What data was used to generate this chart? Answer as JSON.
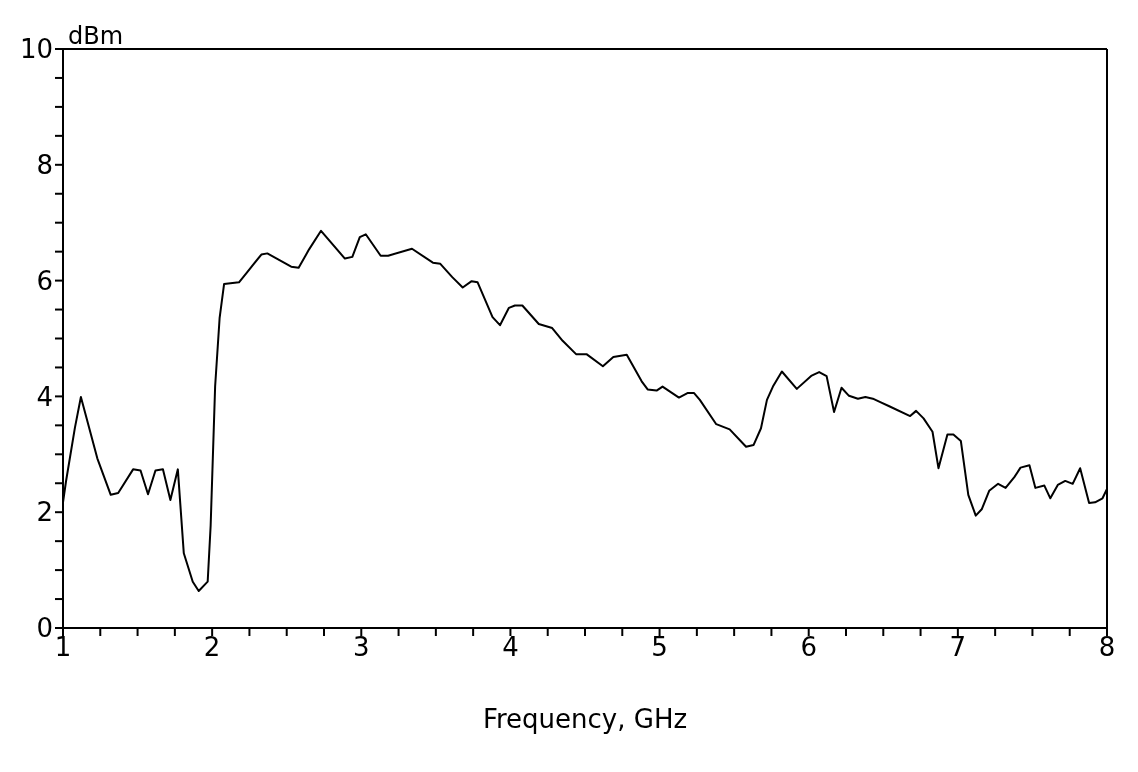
{
  "chart_data": {
    "type": "line",
    "xlabel": "Frequency, GHz",
    "ylabel": "dBm",
    "xlim": [
      1,
      8
    ],
    "ylim": [
      0,
      10
    ],
    "xticks": [
      1,
      {
        "value": 1.25,
        "label": null
      },
      {
        "value": 1.5,
        "label": null
      },
      {
        "value": 1.75,
        "label": null
      },
      2,
      {
        "value": 2.25,
        "label": null
      },
      {
        "value": 2.5,
        "label": null
      },
      {
        "value": 2.75,
        "label": null
      },
      3,
      {
        "value": 3.25,
        "label": null
      },
      {
        "value": 3.5,
        "label": null
      },
      {
        "value": 3.75,
        "label": null
      },
      4,
      {
        "value": 4.25,
        "label": null
      },
      {
        "value": 4.5,
        "label": null
      },
      {
        "value": 4.75,
        "label": null
      },
      5,
      {
        "value": 5.25,
        "label": null
      },
      {
        "value": 5.5,
        "label": null
      },
      {
        "value": 5.75,
        "label": null
      },
      6,
      {
        "value": 6.25,
        "label": null
      },
      {
        "value": 6.5,
        "label": null
      },
      {
        "value": 6.75,
        "label": null
      },
      7,
      {
        "value": 7.25,
        "label": null
      },
      {
        "value": 7.5,
        "label": null
      },
      {
        "value": 7.75,
        "label": null
      },
      8
    ],
    "yticks": [
      0,
      {
        "value": 0.5,
        "label": null
      },
      {
        "value": 1,
        "label": null
      },
      {
        "value": 1.5,
        "label": null
      },
      2,
      {
        "value": 2.5,
        "label": null
      },
      {
        "value": 3,
        "label": null
      },
      {
        "value": 3.5,
        "label": null
      },
      4,
      {
        "value": 4.5,
        "label": null
      },
      {
        "value": 5,
        "label": null
      },
      {
        "value": 5.5,
        "label": null
      },
      6,
      {
        "value": 6.5,
        "label": null
      },
      {
        "value": 7,
        "label": null
      },
      {
        "value": 7.5,
        "label": null
      },
      8,
      {
        "value": 8.5,
        "label": null
      },
      {
        "value": 9,
        "label": null
      },
      {
        "value": 9.5,
        "label": null
      },
      10
    ],
    "grid": false,
    "marker": "none",
    "line_style": "solid",
    "series": [
      {
        "color": "#000000",
        "x": [
          1.0,
          1.02,
          1.08,
          1.12,
          1.23,
          1.32,
          1.37,
          1.47,
          1.52,
          1.57,
          1.62,
          1.67,
          1.72,
          1.77,
          1.81,
          1.87,
          1.91,
          1.97,
          1.99,
          2.02,
          2.05,
          2.08,
          2.18,
          2.23,
          2.33,
          2.37,
          2.53,
          2.58,
          2.65,
          2.73,
          2.89,
          2.94,
          2.99,
          3.03,
          3.13,
          3.18,
          3.34,
          3.48,
          3.53,
          3.61,
          3.68,
          3.74,
          3.78,
          3.88,
          3.93,
          3.99,
          4.03,
          4.08,
          4.19,
          4.28,
          4.35,
          4.44,
          4.51,
          4.62,
          4.69,
          4.78,
          4.88,
          4.92,
          4.98,
          5.02,
          5.13,
          5.19,
          5.23,
          5.27,
          5.38,
          5.47,
          5.58,
          5.63,
          5.68,
          5.72,
          5.76,
          5.82,
          5.92,
          6.02,
          6.07,
          6.12,
          6.17,
          6.22,
          6.27,
          6.33,
          6.38,
          6.43,
          6.48,
          6.54,
          6.68,
          6.72,
          6.77,
          6.83,
          6.87,
          6.93,
          6.97,
          7.02,
          7.07,
          7.12,
          7.16,
          7.21,
          7.27,
          7.32,
          7.38,
          7.42,
          7.48,
          7.52,
          7.58,
          7.62,
          7.67,
          7.72,
          7.77,
          7.82,
          7.88,
          7.92,
          7.97,
          8.0
        ],
        "values": [
          2.17,
          2.53,
          3.46,
          3.99,
          2.93,
          2.3,
          2.33,
          2.74,
          2.72,
          2.31,
          2.72,
          2.74,
          2.21,
          2.74,
          1.29,
          0.8,
          0.64,
          0.8,
          1.77,
          4.17,
          5.35,
          5.94,
          5.97,
          6.13,
          6.45,
          6.47,
          6.24,
          6.22,
          6.54,
          6.86,
          6.38,
          6.41,
          6.75,
          6.8,
          6.43,
          6.43,
          6.55,
          6.31,
          6.29,
          6.06,
          5.88,
          5.99,
          5.97,
          5.37,
          5.23,
          5.53,
          5.57,
          5.57,
          5.25,
          5.18,
          4.96,
          4.73,
          4.73,
          4.52,
          4.68,
          4.72,
          4.26,
          4.12,
          4.1,
          4.17,
          3.98,
          4.06,
          4.06,
          3.94,
          3.52,
          3.43,
          3.13,
          3.16,
          3.45,
          3.94,
          4.17,
          4.43,
          4.13,
          4.36,
          4.42,
          4.35,
          3.73,
          4.15,
          4.01,
          3.96,
          3.99,
          3.96,
          3.9,
          3.83,
          3.66,
          3.75,
          3.62,
          3.39,
          2.76,
          3.34,
          3.34,
          3.23,
          2.3,
          1.94,
          2.05,
          2.37,
          2.49,
          2.42,
          2.61,
          2.77,
          2.81,
          2.42,
          2.46,
          2.24,
          2.47,
          2.54,
          2.49,
          2.76,
          2.16,
          2.17,
          2.24,
          2.4
        ]
      }
    ]
  }
}
